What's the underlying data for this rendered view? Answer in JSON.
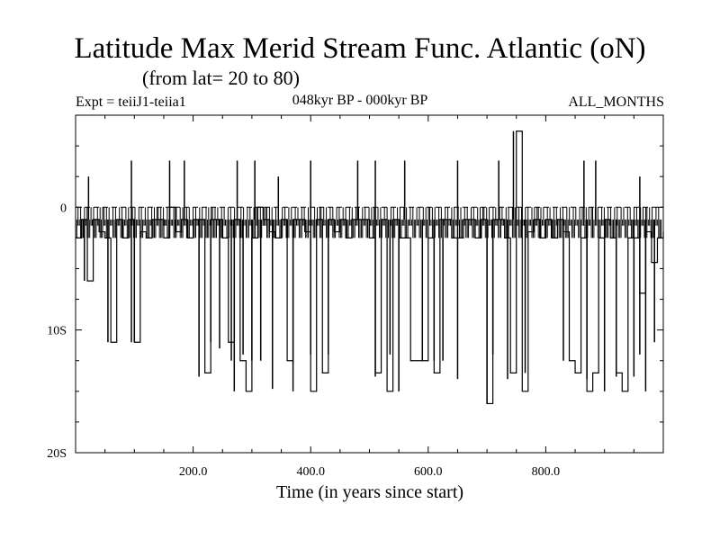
{
  "chart_data": {
    "type": "line",
    "title": "Latitude Max Merid Stream Func. Atlantic (oN)",
    "subtitle": "(from lat= 20 to 80)",
    "experiment_label": "Expt = teiiJ1-teiia1",
    "period_label": "048kyr BP - 000kyr BP",
    "season_label": "ALL_MONTHS",
    "xlabel": "Time (in years since start)",
    "ylabel": "",
    "xlim": [
      0,
      1000
    ],
    "ylim": [
      -20,
      7.5
    ],
    "x_ticks": [
      200,
      400,
      600,
      800
    ],
    "x_tick_labels": [
      "200.0",
      "400.0",
      "600.0",
      "800.0"
    ],
    "y_ticks": [
      0,
      -10,
      -20
    ],
    "y_tick_labels": [
      "0",
      "10S",
      "20S"
    ],
    "reference_line": {
      "y": 0,
      "style": "dashed"
    },
    "grid": false,
    "series": [
      {
        "name": "",
        "x": [
          0,
          10,
          20,
          30,
          40,
          50,
          60,
          70,
          80,
          90,
          100,
          110,
          120,
          130,
          140,
          150,
          160,
          170,
          180,
          190,
          200,
          210,
          220,
          230,
          240,
          250,
          260,
          270,
          280,
          290,
          300,
          310,
          320,
          330,
          340,
          350,
          360,
          370,
          380,
          390,
          400,
          410,
          420,
          430,
          440,
          450,
          460,
          470,
          480,
          490,
          500,
          510,
          520,
          530,
          540,
          550,
          560,
          570,
          580,
          590,
          600,
          610,
          620,
          630,
          640,
          650,
          660,
          670,
          680,
          690,
          700,
          710,
          720,
          730,
          740,
          750,
          760,
          770,
          780,
          790,
          800,
          810,
          820,
          830,
          840,
          850,
          860,
          870,
          880,
          890,
          900,
          910,
          920,
          930,
          940,
          950,
          960,
          970,
          980,
          990,
          1000
        ],
        "y": [
          -2.5,
          -1,
          -6,
          -1,
          -2,
          -2.5,
          -11,
          -1,
          -2.5,
          -1,
          -11,
          -2,
          -2.5,
          -1,
          -1,
          -2.5,
          0,
          -2,
          -1,
          -2.5,
          -1,
          -1,
          -13.5,
          -1,
          -1,
          -2.5,
          -11,
          -1,
          -12.5,
          -15,
          -2.5,
          0,
          -1,
          -2,
          -2.5,
          -1,
          -12.5,
          -1,
          -1,
          -2,
          -15,
          -1,
          -13.5,
          -1,
          -2,
          -1,
          -2.5,
          -1,
          -1,
          -1,
          -2.5,
          -13.5,
          -1,
          -15,
          -1,
          -2.5,
          -2.5,
          -12.5,
          -12.5,
          -12.5,
          -2.5,
          -13.5,
          -1,
          -1,
          -2.5,
          -2.5,
          -1,
          -1,
          -2.5,
          -1,
          -16,
          -1,
          -1,
          -2.5,
          -13.5,
          6.2,
          -15,
          -2,
          -1,
          -2.5,
          -1,
          -2.5,
          -1,
          -2,
          -12.5,
          -13.5,
          -2.5,
          -15,
          -13.5,
          -2.5,
          -1,
          -2.5,
          -13.5,
          -15,
          -2.5,
          -2.5,
          -7,
          -2,
          -4.5,
          -2.5,
          -2
        ]
      }
    ],
    "spikes_up": [
      [
        22,
        2.5
      ],
      [
        95,
        3.8
      ],
      [
        160,
        3.8
      ],
      [
        185,
        3.8
      ],
      [
        275,
        3.8
      ],
      [
        305,
        3.8
      ],
      [
        345,
        2.5
      ],
      [
        400,
        3.8
      ],
      [
        480,
        3.8
      ],
      [
        510,
        3.8
      ],
      [
        560,
        3.8
      ],
      [
        650,
        3.8
      ],
      [
        720,
        3.8
      ],
      [
        745,
        6.2
      ],
      [
        865,
        3.8
      ],
      [
        885,
        3.8
      ],
      [
        960,
        2.5
      ]
    ],
    "spikes_down": [
      [
        15,
        -6
      ],
      [
        55,
        -11
      ],
      [
        95,
        -11
      ],
      [
        100,
        -11
      ],
      [
        210,
        -13.8
      ],
      [
        230,
        -11
      ],
      [
        245,
        -11.5
      ],
      [
        265,
        -12.5
      ],
      [
        270,
        -15
      ],
      [
        285,
        -12
      ],
      [
        300,
        -12.5
      ],
      [
        315,
        -12.5
      ],
      [
        335,
        -14.8
      ],
      [
        370,
        -15
      ],
      [
        400,
        -12
      ],
      [
        430,
        -12
      ],
      [
        510,
        -13.8
      ],
      [
        535,
        -12
      ],
      [
        550,
        -15
      ],
      [
        590,
        -12.5
      ],
      [
        610,
        -12.5
      ],
      [
        625,
        -12.5
      ],
      [
        650,
        -14
      ],
      [
        700,
        -16
      ],
      [
        710,
        -12
      ],
      [
        735,
        -14
      ],
      [
        765,
        -13.5
      ],
      [
        830,
        -12.5
      ],
      [
        870,
        -14
      ],
      [
        900,
        -15
      ],
      [
        920,
        -13.8
      ],
      [
        950,
        -13.8
      ],
      [
        960,
        -12
      ],
      [
        970,
        -15
      ],
      [
        985,
        -11
      ]
    ]
  }
}
